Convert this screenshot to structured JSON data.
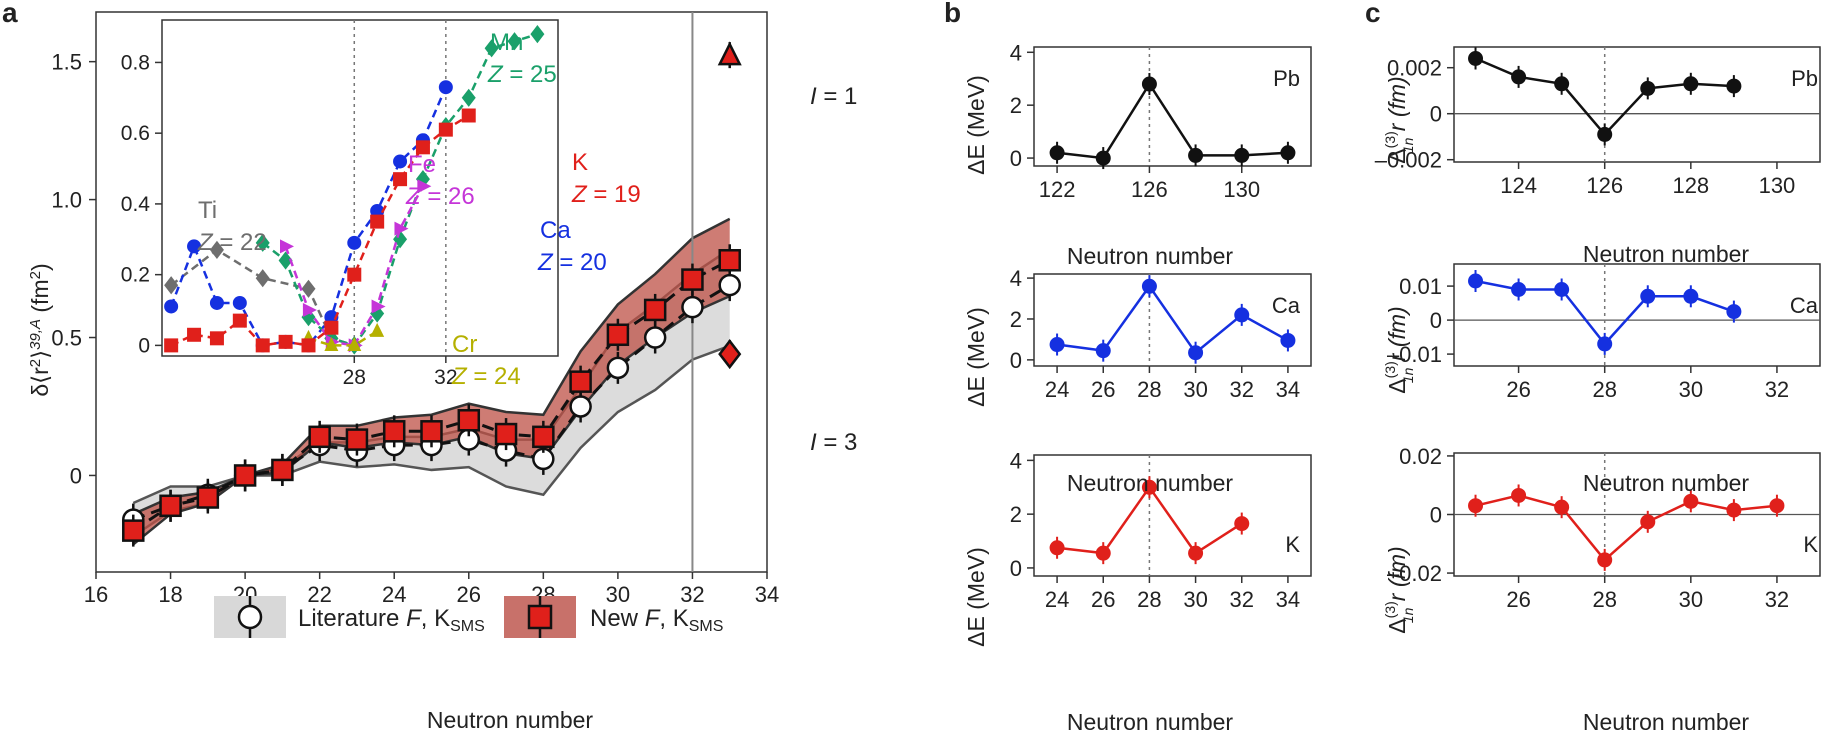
{
  "panel_labels": {
    "a": "a",
    "b": "b",
    "c": "c"
  },
  "chart_data": [
    {
      "id": "a",
      "type": "line",
      "xlabel": "Neutron number",
      "ylabel_main": "δ⟨r",
      "ylabel_sup": "2",
      "ylabel_tail": "⟩",
      "ylabel_sup2": "39,A",
      "ylabel_unit": " (fm",
      "ylabel_unit_sup": "2",
      "ylabel_close": ")",
      "xlim": [
        16,
        34
      ],
      "ylim": [
        -0.35,
        1.68
      ],
      "xticks": [
        16,
        18,
        20,
        22,
        24,
        26,
        28,
        30,
        32,
        34
      ],
      "yticks": [
        0,
        0.5,
        1.0,
        1.5
      ],
      "ytick_labels": [
        "0",
        "0.5",
        "1.0",
        "1.5"
      ],
      "vline": 32,
      "series": [
        {
          "name": "Literature F, K_SMS",
          "marker": "circle",
          "color": "#ffffff",
          "x": [
            17,
            18,
            19,
            20,
            21,
            22,
            23,
            24,
            25,
            26,
            27,
            28,
            29,
            30,
            31,
            32,
            33
          ],
          "y": [
            -0.16,
            -0.11,
            -0.07,
            0.0,
            0.02,
            0.11,
            0.09,
            0.11,
            0.11,
            0.13,
            0.09,
            0.06,
            0.25,
            0.39,
            0.5,
            0.61,
            0.69
          ]
        },
        {
          "name": "New F, K_SMS",
          "marker": "square",
          "color": "#e0201b",
          "x": [
            17,
            18,
            19,
            20,
            21,
            22,
            23,
            24,
            25,
            26,
            27,
            28,
            29,
            30,
            31,
            32,
            33
          ],
          "y": [
            -0.2,
            -0.11,
            -0.08,
            0.0,
            0.02,
            0.14,
            0.13,
            0.16,
            0.16,
            0.2,
            0.15,
            0.14,
            0.34,
            0.51,
            0.6,
            0.71,
            0.78
          ]
        }
      ],
      "band_literature": {
        "upper": [
          -0.1,
          -0.04,
          -0.04,
          0.0,
          0.03,
          0.12,
          0.12,
          0.14,
          0.14,
          0.17,
          0.13,
          0.13,
          0.32,
          0.52,
          0.62,
          0.73,
          0.82
        ],
        "lower": [
          -0.22,
          -0.13,
          -0.1,
          0.0,
          0.0,
          0.05,
          0.03,
          0.04,
          0.02,
          0.03,
          -0.04,
          -0.07,
          0.1,
          0.23,
          0.31,
          0.42,
          0.47
        ]
      },
      "band_new": {
        "upper": [
          -0.14,
          -0.08,
          -0.06,
          0.0,
          0.04,
          0.18,
          0.18,
          0.21,
          0.22,
          0.26,
          0.23,
          0.22,
          0.45,
          0.62,
          0.73,
          0.86,
          0.93
        ],
        "lower": [
          -0.25,
          -0.14,
          -0.1,
          0.0,
          0.01,
          0.12,
          0.1,
          0.12,
          0.11,
          0.14,
          0.08,
          0.06,
          0.24,
          0.4,
          0.5,
          0.59,
          0.65
        ]
      },
      "isomers": [
        {
          "label_prefix": "I",
          "label_suffix": " = 1",
          "x": 33,
          "y": 1.52,
          "marker": "triangle"
        },
        {
          "label_prefix": "I",
          "label_suffix": " = 3",
          "x": 33,
          "y": 0.44,
          "marker": "diamond"
        }
      ],
      "legend": [
        {
          "text_pre": "Literature ",
          "text_it": "F",
          "text_mid": ", K",
          "text_sub": "SMS"
        },
        {
          "text_pre": "New ",
          "text_it": "F",
          "text_mid": ", K",
          "text_sub": "SMS"
        }
      ],
      "inset": {
        "xlim": [
          19.6,
          36.9
        ],
        "ylim": [
          -0.03,
          0.92
        ],
        "xticks": [
          28,
          32
        ],
        "yticks": [
          0,
          0.2,
          0.4,
          0.6,
          0.8
        ],
        "ytick_labels": [
          "0",
          "0.2",
          "0.4",
          "0.6",
          "0.8"
        ],
        "vlines": [
          28,
          32
        ],
        "series": [
          {
            "element": "Ti",
            "Z": "22",
            "color": "#6e6e6e",
            "marker": "diamond",
            "x": [
              20,
              22,
              24,
              26,
              27,
              28
            ],
            "y": [
              0.17,
              0.27,
              0.19,
              0.16,
              0.02,
              0.0
            ]
          },
          {
            "element": "Ca",
            "Z": "20",
            "color": "#1530e0",
            "marker": "circle",
            "x": [
              20,
              21,
              22,
              23,
              24,
              25,
              26,
              27,
              28,
              29,
              30,
              31,
              32
            ],
            "y": [
              0.11,
              0.28,
              0.12,
              0.12,
              0.0,
              0.01,
              0.0,
              0.08,
              0.29,
              0.38,
              0.52,
              0.58,
              0.73
            ]
          },
          {
            "element": "Mn",
            "Z": "25",
            "color": "#1aa06a",
            "marker": "diamond",
            "x": [
              24,
              25,
              26,
              27,
              28,
              29,
              30,
              31,
              32,
              33,
              34,
              35,
              36
            ],
            "y": [
              0.29,
              0.24,
              0.08,
              0.02,
              0.0,
              0.09,
              0.3,
              0.47,
              0.62,
              0.7,
              0.84,
              0.86,
              0.88
            ]
          },
          {
            "element": "Fe",
            "Z": "26",
            "color": "#c535d8",
            "marker": "triangle-right",
            "x": [
              25,
              26,
              27,
              28,
              29,
              30,
              31
            ],
            "y": [
              0.28,
              0.1,
              0.01,
              0.0,
              0.11,
              0.33,
              0.45
            ]
          },
          {
            "element": "Cr",
            "Z": "24",
            "color": "#b5b000",
            "marker": "triangle",
            "x": [
              26,
              27,
              28,
              29
            ],
            "y": [
              0.02,
              0.0,
              0.0,
              0.04
            ]
          },
          {
            "element": "K",
            "Z": "19",
            "color": "#e0201b",
            "marker": "square",
            "x": [
              20,
              21,
              22,
              23,
              24,
              25,
              26,
              27,
              28,
              29,
              30,
              31,
              32,
              33
            ],
            "y": [
              0.0,
              0.03,
              0.02,
              0.07,
              0.0,
              0.01,
              0.0,
              0.05,
              0.2,
              0.35,
              0.47,
              0.56,
              0.61,
              0.65
            ]
          }
        ]
      }
    },
    {
      "id": "b1",
      "type": "line",
      "element": "Pb",
      "color": "#111111",
      "xlabel": "Neutron number",
      "ylabel": "ΔE (MeV)",
      "xlim": [
        121,
        133
      ],
      "ylim": [
        -0.3,
        4.2
      ],
      "xticks": [
        122,
        126,
        130
      ],
      "yticks": [
        0,
        2,
        4
      ],
      "vline": 126,
      "x": [
        122,
        124,
        126,
        128,
        130,
        132
      ],
      "y": [
        0.2,
        0.0,
        2.8,
        0.1,
        0.1,
        0.2
      ]
    },
    {
      "id": "b2",
      "type": "line",
      "element": "Ca",
      "color": "#1530e0",
      "xlabel": "Neutron number",
      "ylabel": "ΔE (MeV)",
      "xlim": [
        23,
        35
      ],
      "ylim": [
        -0.3,
        4.2
      ],
      "xticks": [
        24,
        26,
        28,
        30,
        32,
        34
      ],
      "yticks": [
        0,
        2,
        4
      ],
      "vline": 28,
      "x": [
        24,
        26,
        28,
        30,
        32,
        34
      ],
      "y": [
        0.75,
        0.45,
        3.6,
        0.35,
        2.2,
        0.95
      ]
    },
    {
      "id": "b3",
      "type": "line",
      "element": "K",
      "color": "#e0201b",
      "xlabel": "Neutron number",
      "ylabel": "ΔE (MeV)",
      "xlim": [
        23,
        35
      ],
      "ylim": [
        -0.3,
        4.2
      ],
      "xticks": [
        24,
        26,
        28,
        30,
        32,
        34
      ],
      "yticks": [
        0,
        2,
        4
      ],
      "vline": 28,
      "x": [
        24,
        26,
        28,
        30,
        32
      ],
      "y": [
        0.75,
        0.55,
        3.0,
        0.55,
        1.65
      ]
    },
    {
      "id": "c1",
      "type": "line",
      "element": "Pb",
      "color": "#111111",
      "xlabel": "Neutron number",
      "ylabel_pre": "Δ",
      "ylabel_sup": "(3)",
      "ylabel_sub": "1n",
      "ylabel_post": " r (fm)",
      "xlim": [
        122.5,
        131
      ],
      "ylim": [
        -0.0021,
        0.0029
      ],
      "xticks": [
        124,
        126,
        128,
        130
      ],
      "yticks": [
        0.002,
        0,
        -0.002
      ],
      "ytick_labels": [
        "0.002",
        "0",
        "–0.002"
      ],
      "vline": 126,
      "hline": 0,
      "x": [
        123,
        124,
        125,
        126,
        127,
        128,
        129
      ],
      "y": [
        0.0024,
        0.0016,
        0.0013,
        -0.0009,
        0.0011,
        0.0013,
        0.0012
      ]
    },
    {
      "id": "c2",
      "type": "line",
      "element": "Ca",
      "color": "#1530e0",
      "xlabel": "Neutron number",
      "ylabel_pre": "Δ",
      "ylabel_sup": "(3)",
      "ylabel_sub": "1n",
      "ylabel_post": " r (fm)",
      "xlim": [
        24.5,
        33
      ],
      "ylim": [
        -0.0135,
        0.0165
      ],
      "xticks": [
        26,
        28,
        30,
        32
      ],
      "yticks": [
        0.01,
        0,
        -0.01
      ],
      "ytick_labels": [
        "0.01",
        "0",
        "–0.01"
      ],
      "vline": 28,
      "hline": 0,
      "x": [
        25,
        26,
        27,
        28,
        29,
        30,
        31
      ],
      "y": [
        0.0115,
        0.009,
        0.009,
        -0.007,
        0.007,
        0.007,
        0.0025
      ]
    },
    {
      "id": "c3",
      "type": "line",
      "element": "K",
      "color": "#e0201b",
      "xlabel": "Neutron number",
      "ylabel_pre": "Δ",
      "ylabel_sup": "(3)",
      "ylabel_sub": "1n",
      "ylabel_post": " r (fm)",
      "xlim": [
        24.5,
        33
      ],
      "ylim": [
        -0.021,
        0.021
      ],
      "xticks": [
        26,
        28,
        30,
        32
      ],
      "yticks": [
        0.02,
        0,
        -0.02
      ],
      "ytick_labels": [
        "0.02",
        "0",
        "–0.02"
      ],
      "vline": 28,
      "hline": 0,
      "x": [
        25,
        26,
        27,
        28,
        29,
        30,
        31,
        32
      ],
      "y": [
        0.003,
        0.0065,
        0.0025,
        -0.0155,
        -0.0025,
        0.0045,
        0.0015,
        0.003
      ]
    }
  ]
}
